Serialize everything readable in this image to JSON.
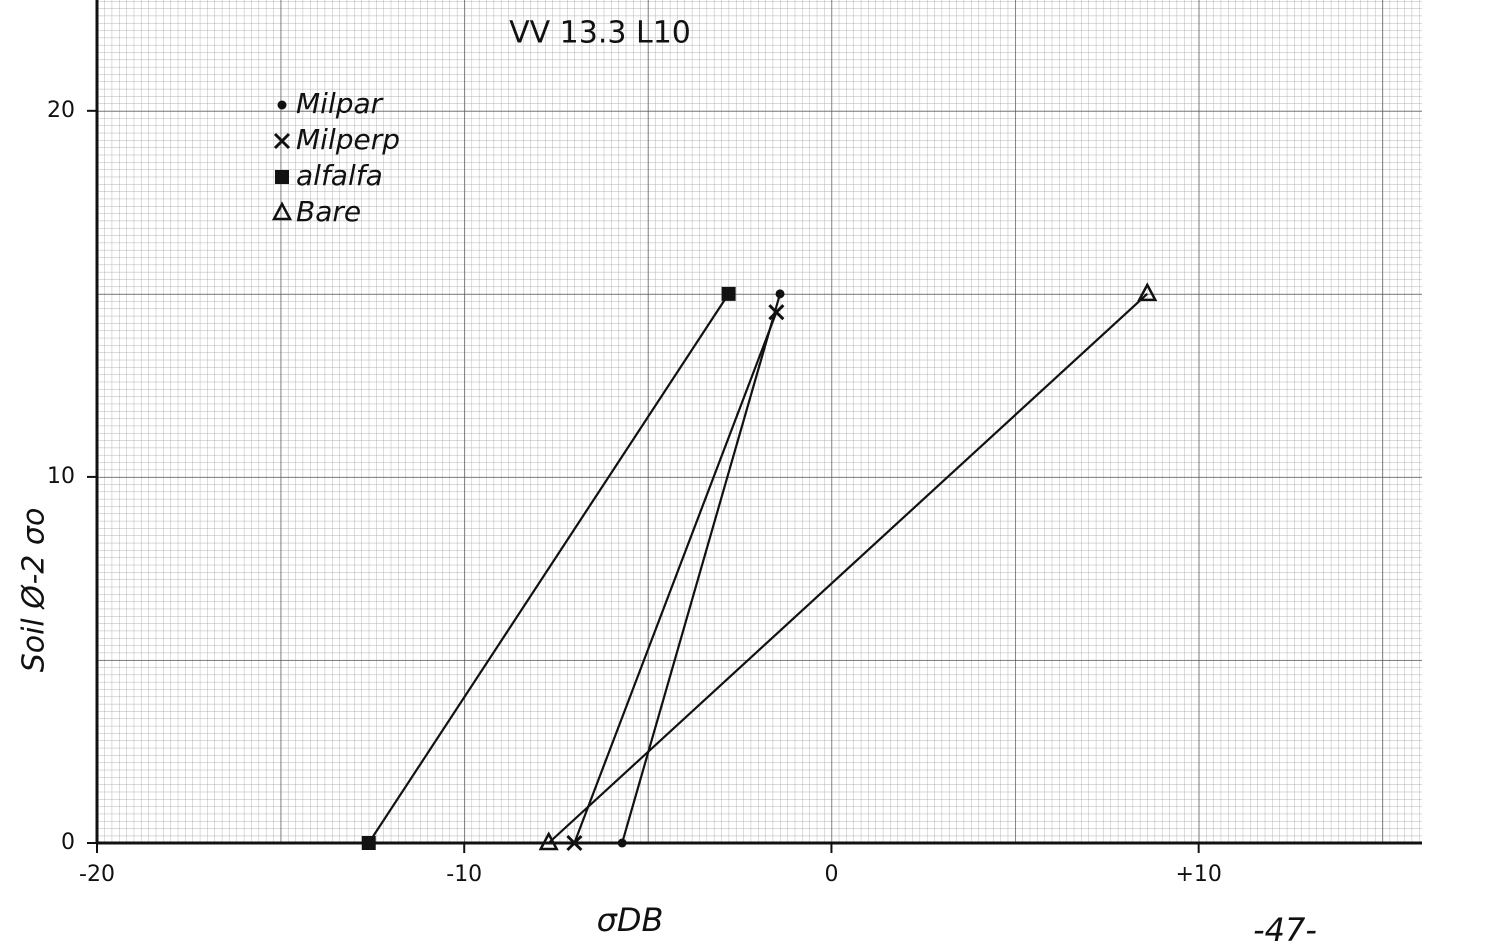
{
  "chart_data": {
    "type": "line",
    "title": "VV 13.3 L10",
    "xlabel": "σDB",
    "ylabel": "Soil Ø-2 σo",
    "page_number": "-47-",
    "xlim": [
      -20,
      16
    ],
    "ylim": [
      0,
      23
    ],
    "xticks": [
      -20,
      -10,
      0,
      {
        "value": 10,
        "label": "+10"
      }
    ],
    "yticks": [
      0,
      10,
      20
    ],
    "legend": "upper left",
    "series": [
      {
        "name": "Milpar",
        "marker": "dot",
        "color": "#111111",
        "x": [
          -5.7,
          -1.4
        ],
        "values": [
          0,
          15
        ]
      },
      {
        "name": "Milperp",
        "marker": "x",
        "color": "#111111",
        "x": [
          -7.0,
          -1.5
        ],
        "values": [
          0,
          14.5
        ]
      },
      {
        "name": "alfalfa",
        "marker": "square",
        "color": "#111111",
        "x": [
          -12.6,
          -2.8
        ],
        "values": [
          0,
          15
        ]
      },
      {
        "name": "Bare",
        "marker": "triangle",
        "color": "#111111",
        "x": [
          -7.7,
          8.6
        ],
        "values": [
          0,
          15
        ]
      }
    ]
  }
}
